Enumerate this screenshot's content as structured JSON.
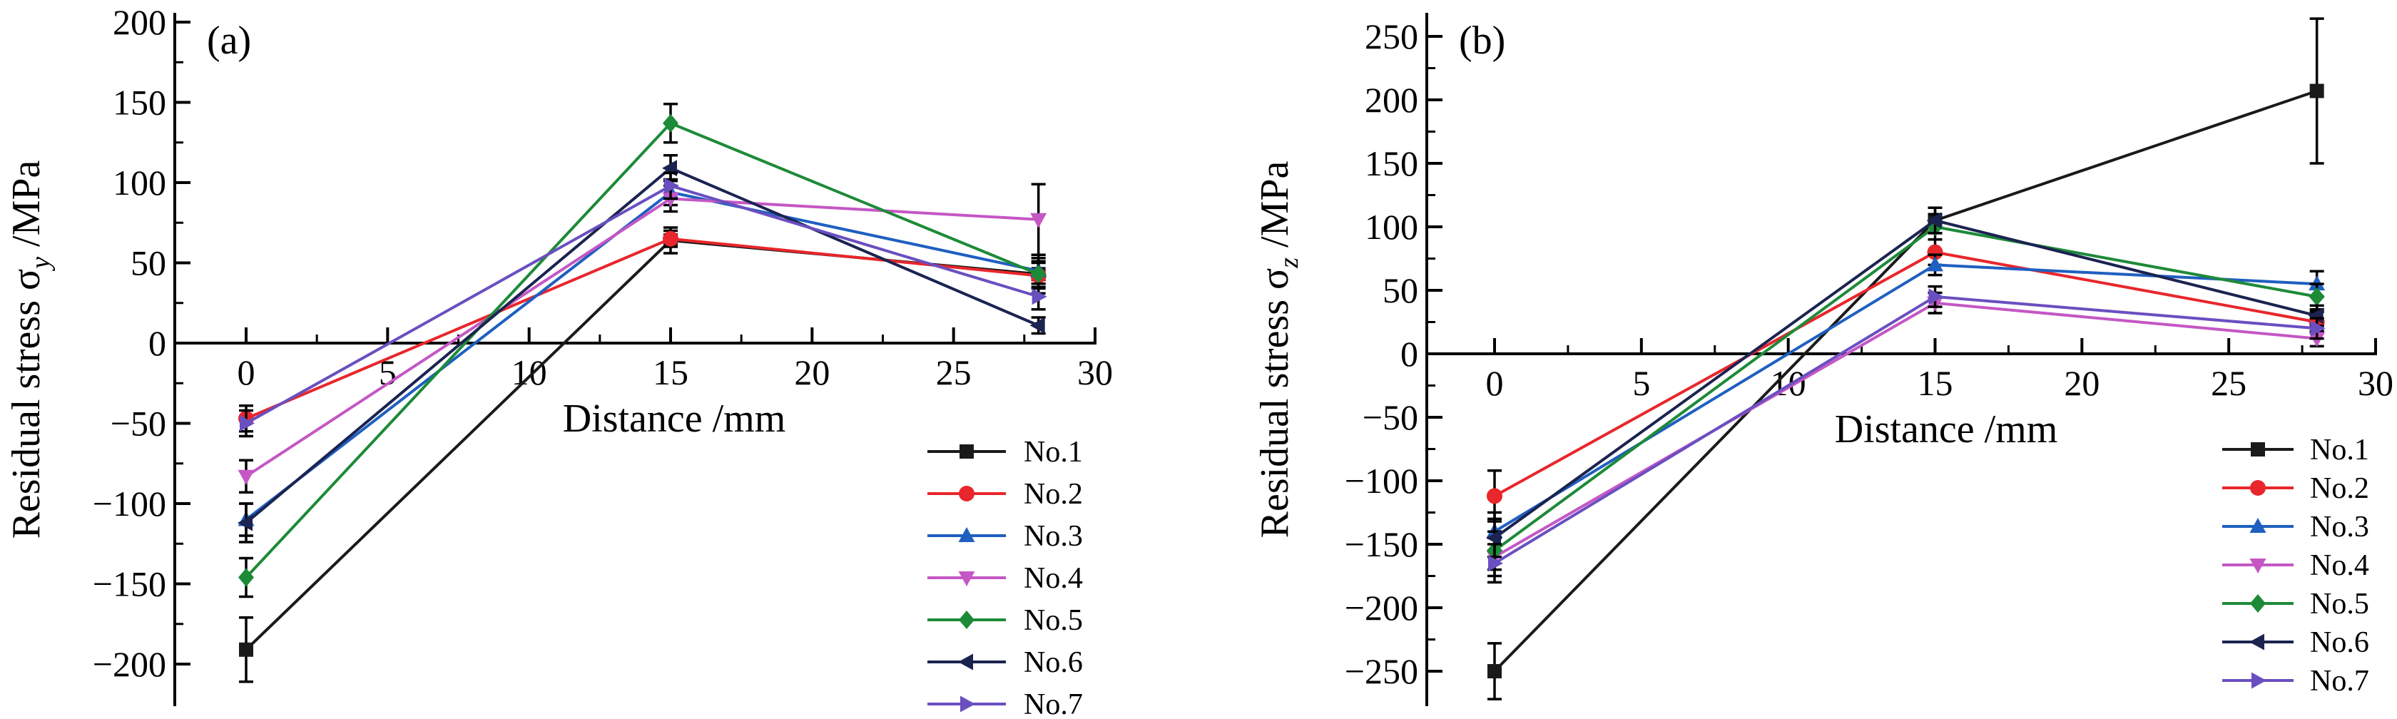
{
  "figure": {
    "description_label": ""
  },
  "chart_data": [
    {
      "type": "line",
      "panel_label": "(a)",
      "xlabel": "Distance /mm",
      "ylabel_prefix": "Residual stress σ",
      "ylabel_subscript": "y",
      "ylabel_suffix": " /MPa",
      "xlim": [
        -3,
        30
      ],
      "ylim": [
        -225,
        200
      ],
      "xticks": [
        0,
        5,
        10,
        15,
        20,
        25,
        30
      ],
      "yticks": [
        -200,
        -150,
        -100,
        -50,
        0,
        50,
        100,
        150,
        200
      ],
      "x": [
        0,
        15,
        28
      ],
      "series": [
        {
          "name": "No.1",
          "color": "#1a1a1a",
          "marker": "square",
          "values": [
            -191,
            64,
            43
          ],
          "errors": [
            20,
            8,
            12
          ]
        },
        {
          "name": "No.2",
          "color": "#e8262b",
          "marker": "circle",
          "values": [
            -47,
            65,
            42
          ],
          "errors": [
            8,
            5,
            8
          ]
        },
        {
          "name": "No.3",
          "color": "#1f5fc0",
          "marker": "triangle-up",
          "values": [
            -110,
            94,
            45
          ],
          "errors": [
            10,
            8,
            8
          ]
        },
        {
          "name": "No.4",
          "color": "#c457c4",
          "marker": "triangle-down",
          "values": [
            -83,
            90,
            77
          ],
          "errors": [
            10,
            8,
            22
          ]
        },
        {
          "name": "No.5",
          "color": "#1d8a38",
          "marker": "diamond",
          "values": [
            -146,
            137,
            43
          ],
          "errors": [
            12,
            12,
            8
          ]
        },
        {
          "name": "No.6",
          "color": "#1b2350",
          "marker": "triangle-left",
          "values": [
            -112,
            109,
            11
          ],
          "errors": [
            12,
            8,
            5
          ]
        },
        {
          "name": "No.7",
          "color": "#6a4fc0",
          "marker": "triangle-right",
          "values": [
            -50,
            98,
            29
          ],
          "errors": [
            8,
            8,
            8
          ]
        }
      ],
      "legend_position": "bottom-right"
    },
    {
      "type": "line",
      "panel_label": "(b)",
      "xlabel": "Distance /mm",
      "ylabel_prefix": "Residual stress σ",
      "ylabel_subscript": "z",
      "ylabel_suffix": " /MPa",
      "xlim": [
        -3,
        30
      ],
      "ylim": [
        -275,
        270
      ],
      "xticks": [
        0,
        5,
        10,
        15,
        20,
        25,
        30
      ],
      "yticks": [
        -250,
        -200,
        -150,
        -100,
        -50,
        0,
        50,
        100,
        150,
        200,
        250
      ],
      "x": [
        0,
        15,
        28
      ],
      "series": [
        {
          "name": "No.1",
          "color": "#1a1a1a",
          "marker": "square",
          "values": [
            -250,
            105,
            207
          ],
          "errors": [
            22,
            10,
            57
          ]
        },
        {
          "name": "No.2",
          "color": "#e8262b",
          "marker": "circle",
          "values": [
            -112,
            80,
            25
          ],
          "errors": [
            20,
            10,
            8
          ]
        },
        {
          "name": "No.3",
          "color": "#1f5fc0",
          "marker": "triangle-up",
          "values": [
            -140,
            70,
            55
          ],
          "errors": [
            15,
            8,
            10
          ]
        },
        {
          "name": "No.4",
          "color": "#c457c4",
          "marker": "triangle-down",
          "values": [
            -160,
            40,
            12
          ],
          "errors": [
            15,
            8,
            6
          ]
        },
        {
          "name": "No.5",
          "color": "#1d8a38",
          "marker": "diamond",
          "values": [
            -155,
            100,
            45
          ],
          "errors": [
            15,
            10,
            10
          ]
        },
        {
          "name": "No.6",
          "color": "#1b2350",
          "marker": "triangle-left",
          "values": [
            -145,
            105,
            30
          ],
          "errors": [
            15,
            10,
            8
          ]
        },
        {
          "name": "No.7",
          "color": "#6a4fc0",
          "marker": "triangle-right",
          "values": [
            -165,
            45,
            20
          ],
          "errors": [
            15,
            8,
            8
          ]
        }
      ],
      "legend_position": "bottom-right"
    }
  ]
}
